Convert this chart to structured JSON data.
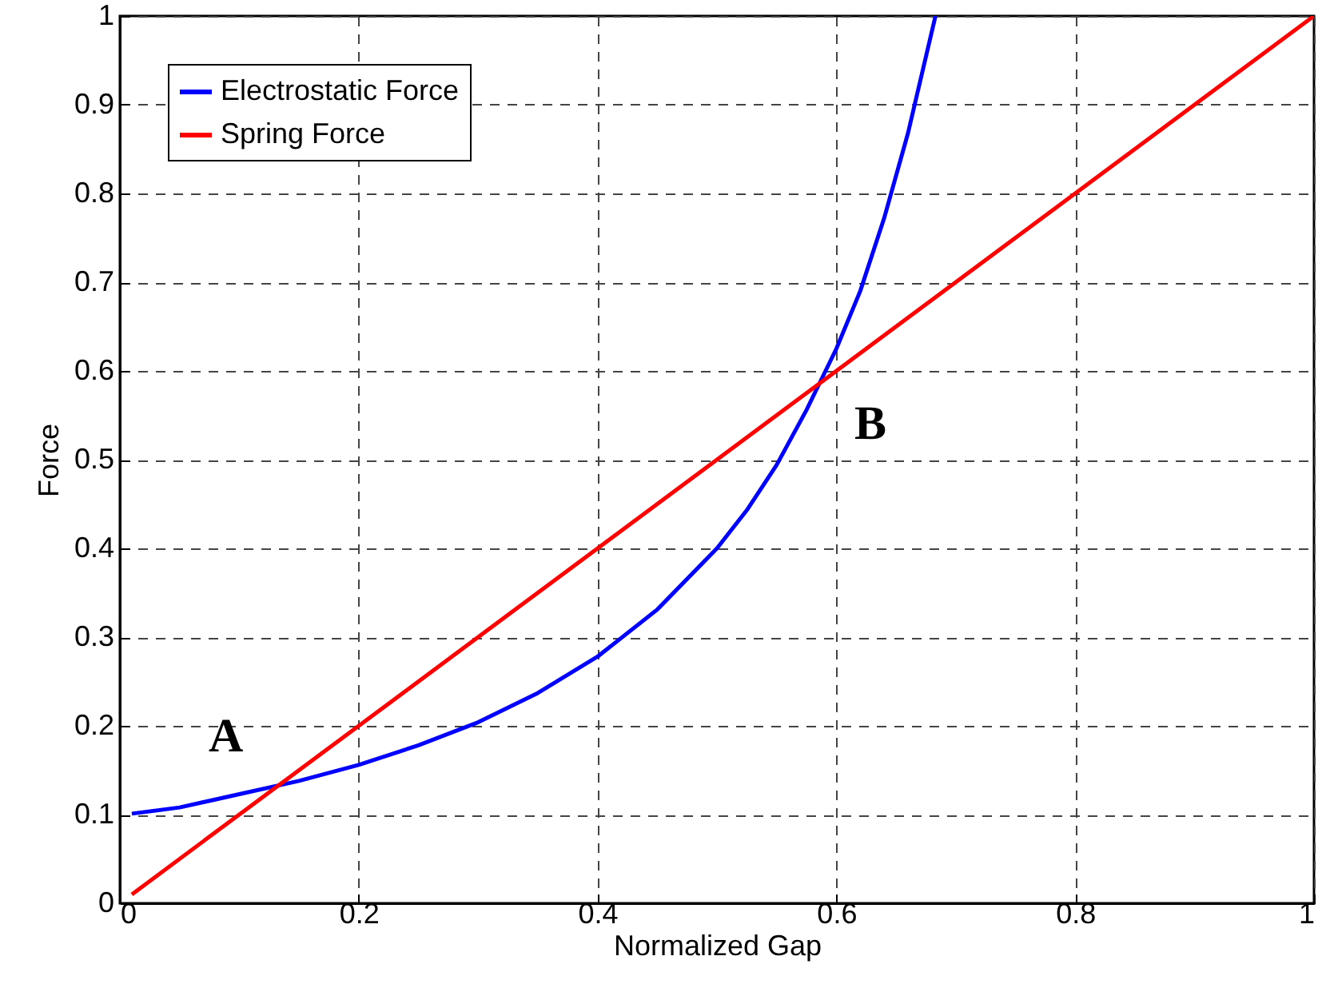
{
  "chart_data": {
    "type": "line",
    "xlabel": "Normalized Gap",
    "ylabel": "Force",
    "xlim": [
      0,
      1
    ],
    "ylim": [
      0,
      1
    ],
    "xticks": [
      0,
      0.2,
      0.4,
      0.6,
      0.8,
      1
    ],
    "yticks": [
      0,
      0.1,
      0.2,
      0.3,
      0.4,
      0.5,
      0.6,
      0.7,
      0.8,
      0.9,
      1
    ],
    "grid": true,
    "legend": "top left",
    "series": [
      {
        "name": "Electrostatic Force",
        "color": "#0000ff",
        "x": [
          0.01,
          0.05,
          0.1,
          0.15,
          0.2,
          0.25,
          0.3,
          0.35,
          0.4,
          0.45,
          0.5,
          0.525,
          0.55,
          0.575,
          0.6,
          0.62,
          0.64,
          0.66,
          0.683
        ],
        "values": [
          0.101,
          0.108,
          0.123,
          0.138,
          0.156,
          0.178,
          0.204,
          0.237,
          0.278,
          0.331,
          0.4,
          0.443,
          0.494,
          0.556,
          0.625,
          0.69,
          0.772,
          0.868,
          1.0
        ]
      },
      {
        "name": "Spring Force",
        "color": "#ff0000",
        "x": [
          0.01,
          1
        ],
        "values": [
          0.01,
          1
        ]
      }
    ],
    "annotations": [
      {
        "text": "A",
        "x": 0.133,
        "y": 0.133
      },
      {
        "text": "B",
        "x": 0.585,
        "y": 0.585
      }
    ]
  }
}
